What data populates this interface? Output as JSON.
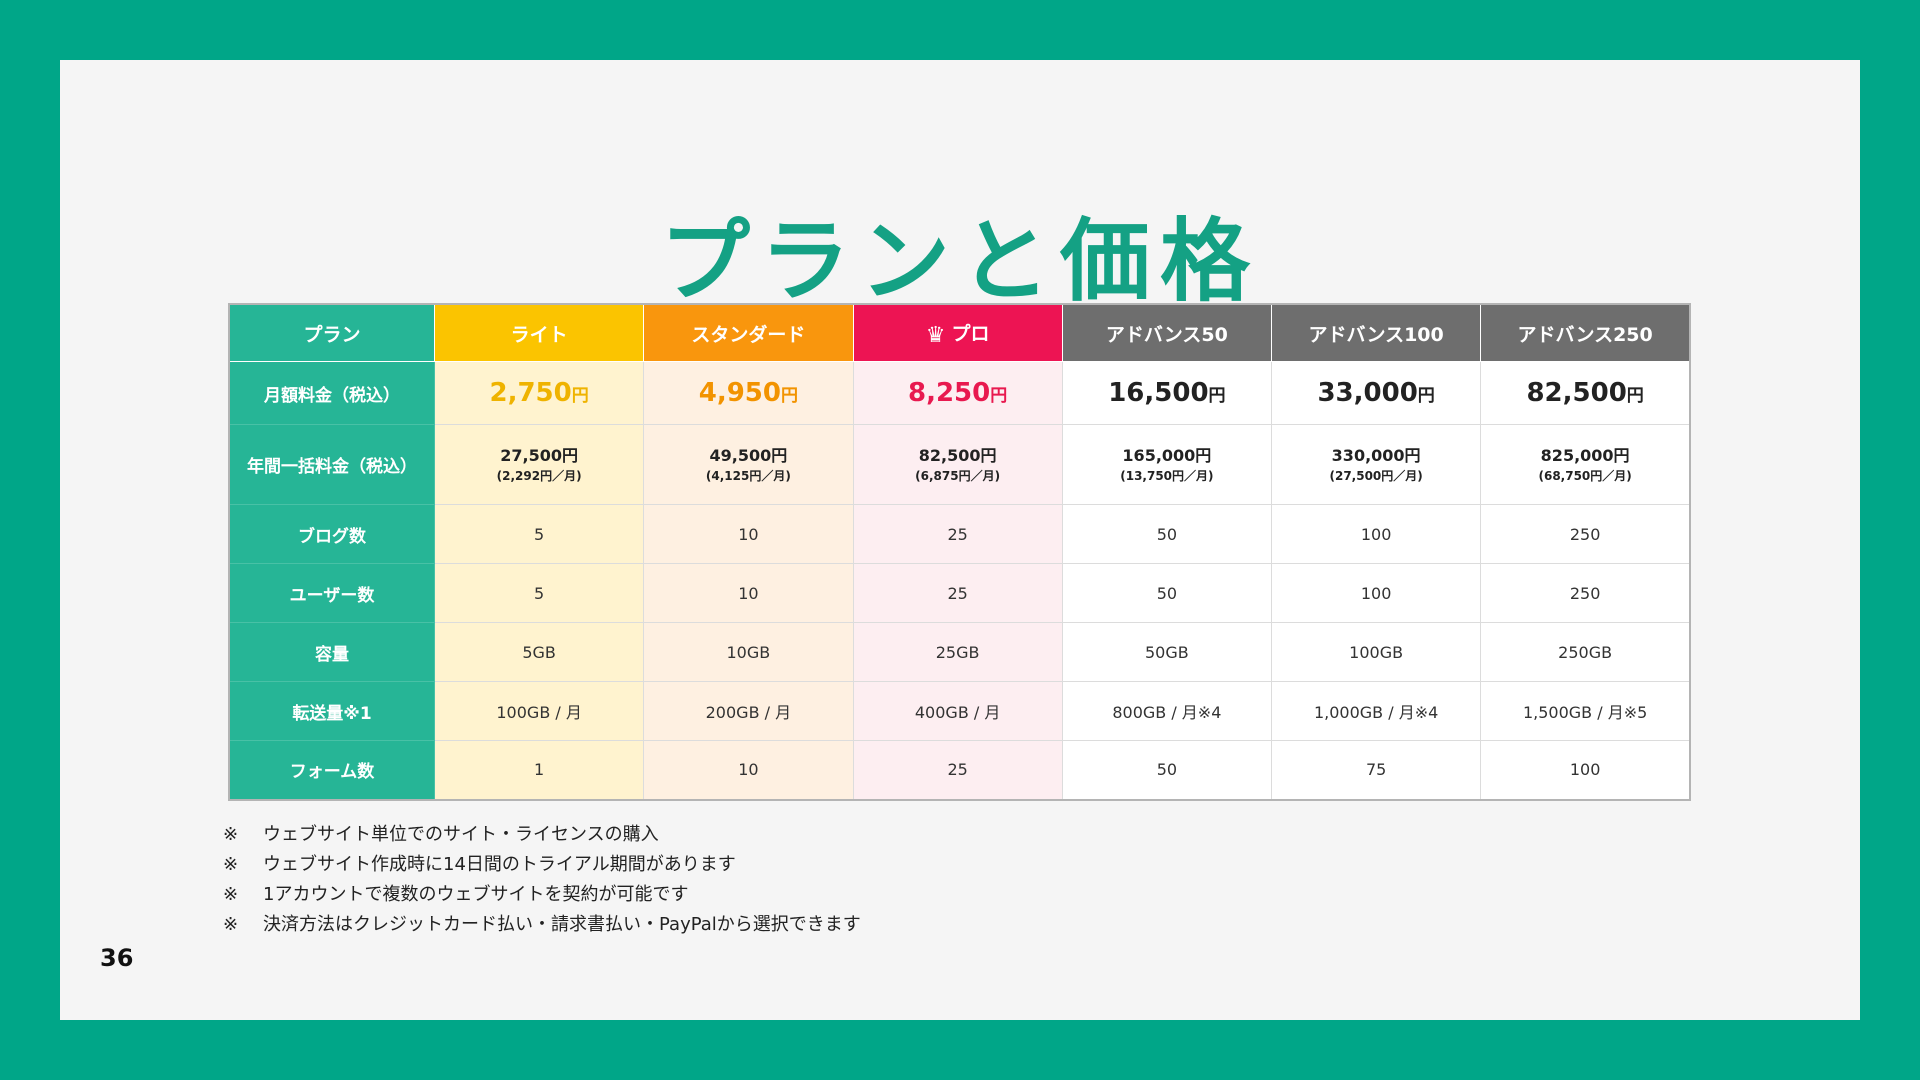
{
  "slide": {
    "title": "プランと価格",
    "page_number": "36"
  },
  "colors": {
    "frame": "#00a688",
    "title": "#14a184",
    "label_column": "#26b596",
    "lite": "#fbc400",
    "standard": "#f9960d",
    "pro": "#ed1453",
    "advance": "#6e6e6e"
  },
  "table": {
    "corner_label": "プラン",
    "plans": [
      {
        "name": "ライト",
        "icon": ""
      },
      {
        "name": "スタンダード",
        "icon": ""
      },
      {
        "name": "プロ",
        "icon": "crown-icon"
      },
      {
        "name": "アドバンス50",
        "icon": ""
      },
      {
        "name": "アドバンス100",
        "icon": ""
      },
      {
        "name": "アドバンス250",
        "icon": ""
      }
    ],
    "monthly": {
      "label": "月額料金（税込）",
      "yen": "円",
      "values": [
        "2,750",
        "4,950",
        "8,250",
        "16,500",
        "33,000",
        "82,500"
      ]
    },
    "annual": {
      "label": "年間一括料金（税込）",
      "values": [
        "27,500円",
        "49,500円",
        "82,500円",
        "165,000円",
        "330,000円",
        "825,000円"
      ],
      "per_month": [
        "(2,292円／月)",
        "(4,125円／月)",
        "(6,875円／月)",
        "(13,750円／月)",
        "(27,500円／月)",
        "(68,750円／月)"
      ]
    },
    "rows": [
      {
        "label": "ブログ数",
        "values": [
          "5",
          "10",
          "25",
          "50",
          "100",
          "250"
        ]
      },
      {
        "label": "ユーザー数",
        "values": [
          "5",
          "10",
          "25",
          "50",
          "100",
          "250"
        ]
      },
      {
        "label": "容量",
        "values": [
          "5GB",
          "10GB",
          "25GB",
          "50GB",
          "100GB",
          "250GB"
        ]
      },
      {
        "label": "転送量※1",
        "values": [
          "100GB / 月",
          "200GB / 月",
          "400GB / 月",
          "800GB / 月※4",
          "1,000GB / 月※4",
          "1,500GB / 月※5"
        ]
      },
      {
        "label": "フォーム数",
        "values": [
          "1",
          "10",
          "25",
          "50",
          "75",
          "100"
        ]
      }
    ]
  },
  "notes": [
    {
      "mark": "※",
      "text": "ウェブサイト単位でのサイト・ライセンスの購入"
    },
    {
      "mark": "※",
      "text": "ウェブサイト作成時に14日間のトライアル期間があります"
    },
    {
      "mark": "※",
      "text": "1アカウントで複数のウェブサイトを契約が可能です"
    },
    {
      "mark": "※",
      "text": "決済方法はクレジットカード払い・請求書払い・PayPalから選択できます"
    }
  ]
}
